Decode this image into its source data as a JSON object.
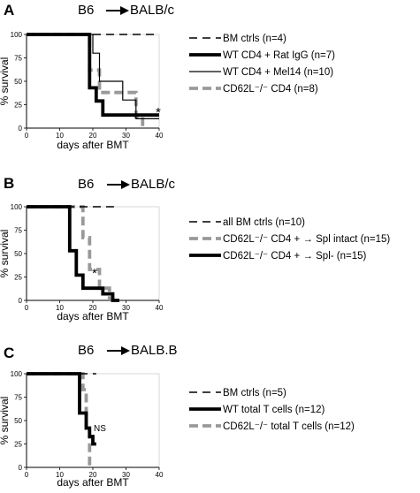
{
  "chart_data": [
    {
      "type": "line",
      "panel": "A",
      "title_left": "B6",
      "title_right": "BALB/c",
      "xlabel": "days after BMT",
      "ylabel": "% survival",
      "xlim": [
        0,
        40
      ],
      "ylim": [
        0,
        100
      ],
      "xticks": [
        0,
        10,
        20,
        30,
        40
      ],
      "yticks": [
        0,
        25,
        50,
        75,
        100
      ],
      "annotation": "*",
      "series": [
        {
          "name": "BM ctrls (n=4)",
          "style": "dashed-thin",
          "color": "#000000",
          "x": [
            0,
            40
          ],
          "y": [
            100,
            100
          ]
        },
        {
          "name": "WT CD4 + Rat IgG (n=7)",
          "style": "solid-thick",
          "color": "#000000",
          "x": [
            0,
            19,
            19,
            21,
            21,
            23,
            23,
            40
          ],
          "y": [
            100,
            100,
            43,
            43,
            29,
            29,
            14,
            14
          ]
        },
        {
          "name": "WT CD4 + Mel14 (n=10)",
          "style": "solid-thin",
          "color": "#000000",
          "x": [
            0,
            20,
            20,
            22,
            22,
            29,
            29,
            33,
            33,
            40
          ],
          "y": [
            100,
            100,
            80,
            80,
            50,
            50,
            30,
            30,
            10,
            10
          ]
        },
        {
          "name": "CD62L⁻/⁻ CD4 (n=8)",
          "style": "dashed-thick",
          "color": "#999999",
          "x": [
            0,
            19,
            19,
            22,
            22,
            26,
            26,
            33,
            33,
            35,
            35
          ],
          "y": [
            100,
            100,
            62,
            62,
            38,
            38,
            38,
            38,
            12,
            12,
            0
          ]
        }
      ]
    },
    {
      "type": "line",
      "panel": "B",
      "title_left": "B6",
      "title_right": "BALB/c",
      "xlabel": "days after BMT",
      "ylabel": "% survival",
      "xlim": [
        0,
        40
      ],
      "ylim": [
        0,
        100
      ],
      "xticks": [
        0,
        10,
        20,
        30,
        40
      ],
      "yticks": [
        0,
        25,
        50,
        75,
        100
      ],
      "annotation": "*",
      "series": [
        {
          "name": "all BM ctrls (n=10)",
          "style": "dashed-thin",
          "color": "#000000",
          "x": [
            0,
            28
          ],
          "y": [
            100,
            100
          ]
        },
        {
          "name": "CD62L⁻/⁻ CD4 + → Spl intact (n=15)",
          "style": "dashed-thick",
          "color": "#999999",
          "x": [
            0,
            17,
            17,
            19,
            19,
            22,
            22,
            25,
            25
          ],
          "y": [
            100,
            100,
            67,
            67,
            33,
            33,
            13,
            13,
            0
          ]
        },
        {
          "name": "CD62L⁻/⁻ CD4 + → Spl- (n=15)",
          "style": "solid-thick",
          "color": "#000000",
          "x": [
            0,
            13,
            13,
            15,
            15,
            17,
            17,
            23,
            23,
            26,
            26,
            28,
            28
          ],
          "y": [
            100,
            100,
            53,
            53,
            27,
            27,
            13,
            13,
            7,
            7,
            0,
            0,
            0
          ]
        }
      ]
    },
    {
      "type": "line",
      "panel": "C",
      "title_left": "B6",
      "title_right": "BALB.B",
      "xlabel": "days after BMT",
      "ylabel": "% survival",
      "xlim": [
        0,
        40
      ],
      "ylim": [
        0,
        100
      ],
      "xticks": [
        0,
        10,
        20,
        30,
        40
      ],
      "yticks": [
        0,
        25,
        50,
        75,
        100
      ],
      "annotation": "NS",
      "series": [
        {
          "name": "BM ctrls (n=5)",
          "style": "dashed-thin",
          "color": "#000000",
          "x": [
            0,
            21
          ],
          "y": [
            100,
            100
          ]
        },
        {
          "name": "WT total T cells (n=12)",
          "style": "solid-thick",
          "color": "#000000",
          "x": [
            0,
            16,
            16,
            18,
            18,
            19,
            19,
            20,
            20,
            21
          ],
          "y": [
            100,
            100,
            58,
            58,
            42,
            42,
            33,
            33,
            25,
            25
          ]
        },
        {
          "name": "CD62L⁻/⁻ total T cells (n=12)",
          "style": "dashed-thick",
          "color": "#999999",
          "x": [
            0,
            17,
            17,
            18,
            18,
            19,
            19
          ],
          "y": [
            100,
            100,
            83,
            83,
            42,
            42,
            0
          ]
        }
      ]
    }
  ]
}
